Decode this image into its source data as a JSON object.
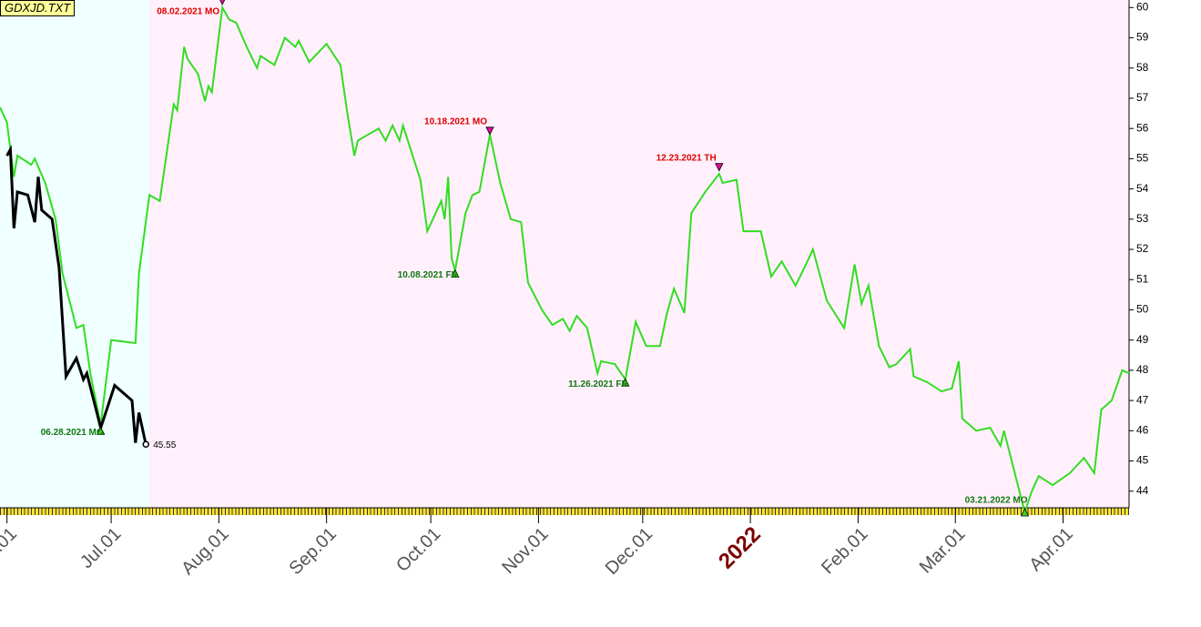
{
  "chart_data": {
    "type": "line",
    "title": "GDXJD.TXT",
    "xlim": [
      "2021-05-30",
      "2022-04-20"
    ],
    "ylim": [
      43.3,
      60.1
    ],
    "yticks": [
      44,
      45,
      46,
      47,
      48,
      49,
      50,
      51,
      52,
      53,
      54,
      55,
      56,
      57,
      58,
      59,
      60
    ],
    "xticks": [
      {
        "value": "2021-06-01",
        "label": "Jun.01"
      },
      {
        "value": "2021-07-01",
        "label": "Jul.01"
      },
      {
        "value": "2021-08-01",
        "label": "Aug.01"
      },
      {
        "value": "2021-09-01",
        "label": "Sep.01"
      },
      {
        "value": "2021-10-01",
        "label": "Oct.01"
      },
      {
        "value": "2021-11-01",
        "label": "Nov.01"
      },
      {
        "value": "2021-12-01",
        "label": "Dec.01"
      },
      {
        "value": "2022-01-01",
        "label": "2022"
      },
      {
        "value": "2022-02-01",
        "label": "Feb.01"
      },
      {
        "value": "2022-03-01",
        "label": "Mar.01"
      },
      {
        "value": "2022-04-01",
        "label": "Apr.01"
      }
    ],
    "shading": [
      {
        "from": "2021-05-30",
        "to": "2021-07-12",
        "color": "#f0ffff"
      },
      {
        "from": "2021-07-12",
        "to": "2022-04-20",
        "color": "#fff0fb"
      }
    ],
    "series": [
      {
        "color": "#33dd22",
        "x": [
          "2021-05-30",
          "2021-06-01",
          "2021-06-03",
          "2021-06-04",
          "2021-06-08",
          "2021-06-09",
          "2021-06-12",
          "2021-06-15",
          "2021-06-17",
          "2021-06-21",
          "2021-06-23",
          "2021-06-25",
          "2021-06-28",
          "2021-07-01",
          "2021-07-08",
          "2021-07-09",
          "2021-07-12",
          "2021-07-15",
          "2021-07-19",
          "2021-07-20",
          "2021-07-22",
          "2021-07-23",
          "2021-07-26",
          "2021-07-28",
          "2021-07-29",
          "2021-07-30",
          "2021-08-02",
          "2021-08-04",
          "2021-08-06",
          "2021-08-09",
          "2021-08-12",
          "2021-08-13",
          "2021-08-17",
          "2021-08-20",
          "2021-08-23",
          "2021-08-24",
          "2021-08-27",
          "2021-09-01",
          "2021-09-05",
          "2021-09-07",
          "2021-09-09",
          "2021-09-10",
          "2021-09-13",
          "2021-09-16",
          "2021-09-18",
          "2021-09-20",
          "2021-09-22",
          "2021-09-23",
          "2021-09-28",
          "2021-09-30",
          "2021-10-04",
          "2021-10-05",
          "2021-10-06",
          "2021-10-07",
          "2021-10-08",
          "2021-10-11",
          "2021-10-13",
          "2021-10-15",
          "2021-10-18",
          "2021-10-21",
          "2021-10-24",
          "2021-10-27",
          "2021-10-29",
          "2021-11-02",
          "2021-11-05",
          "2021-11-08",
          "2021-11-10",
          "2021-11-12",
          "2021-11-15",
          "2021-11-18",
          "2021-11-19",
          "2021-11-23",
          "2021-11-26",
          "2021-11-29",
          "2021-12-02",
          "2021-12-06",
          "2021-12-08",
          "2021-12-10",
          "2021-12-13",
          "2021-12-15",
          "2021-12-19",
          "2021-12-21",
          "2021-12-23",
          "2021-12-24",
          "2021-12-28",
          "2021-12-30",
          "2022-01-04",
          "2022-01-07",
          "2022-01-10",
          "2022-01-14",
          "2022-01-17",
          "2022-01-19",
          "2022-01-23",
          "2022-01-28",
          "2022-01-31",
          "2022-02-02",
          "2022-02-04",
          "2022-02-07",
          "2022-02-10",
          "2022-02-12",
          "2022-02-16",
          "2022-02-17",
          "2022-02-21",
          "2022-02-25",
          "2022-02-28",
          "2022-03-02",
          "2022-03-03",
          "2022-03-07",
          "2022-03-11",
          "2022-03-14",
          "2022-03-15",
          "2022-03-21",
          "2022-03-23",
          "2022-03-25",
          "2022-03-29",
          "2022-04-03",
          "2022-04-07",
          "2022-04-10",
          "2022-04-12",
          "2022-04-15",
          "2022-04-18",
          "2022-04-20"
        ],
        "values": [
          56.7,
          56.2,
          54.4,
          55.1,
          54.8,
          55.0,
          54.2,
          53.0,
          51.2,
          49.4,
          49.5,
          47.9,
          46.2,
          49.0,
          48.9,
          51.2,
          53.8,
          53.6,
          56.8,
          56.6,
          58.7,
          58.3,
          57.8,
          56.9,
          57.4,
          57.2,
          60.0,
          59.6,
          59.5,
          58.7,
          58.0,
          58.4,
          58.1,
          59.0,
          58.7,
          58.9,
          58.2,
          58.8,
          58.1,
          56.5,
          55.1,
          55.6,
          55.8,
          56.0,
          55.6,
          56.1,
          55.6,
          56.1,
          54.3,
          52.6,
          53.6,
          53.0,
          54.4,
          51.7,
          51.3,
          53.2,
          53.8,
          53.9,
          55.8,
          54.2,
          53.0,
          52.9,
          50.9,
          50.0,
          49.5,
          49.7,
          49.3,
          49.8,
          49.4,
          47.9,
          48.3,
          48.2,
          47.7,
          49.6,
          48.8,
          48.8,
          49.9,
          50.7,
          49.9,
          53.2,
          53.9,
          54.2,
          54.5,
          54.2,
          54.3,
          52.6,
          52.6,
          51.1,
          51.6,
          50.8,
          51.5,
          52.0,
          50.3,
          49.4,
          51.5,
          50.2,
          50.8,
          48.8,
          48.1,
          48.2,
          48.7,
          47.8,
          47.6,
          47.3,
          47.4,
          48.3,
          46.4,
          46.0,
          46.1,
          45.5,
          46.0,
          43.3,
          44.0,
          44.5,
          44.2,
          44.6,
          45.1,
          44.6,
          46.7,
          47.0,
          48.0,
          47.9
        ]
      },
      {
        "color": "#000000",
        "x": [
          "2021-06-01",
          "2021-06-02",
          "2021-06-03",
          "2021-06-04",
          "2021-06-07",
          "2021-06-09",
          "2021-06-10",
          "2021-06-11",
          "2021-06-14",
          "2021-06-16",
          "2021-06-18",
          "2021-06-21",
          "2021-06-23",
          "2021-06-24",
          "2021-06-28",
          "2021-06-30",
          "2021-07-02",
          "2021-07-07",
          "2021-07-08",
          "2021-07-09",
          "2021-07-11"
        ],
        "values": [
          55.1,
          55.3,
          52.7,
          53.9,
          53.8,
          52.9,
          54.4,
          53.3,
          53.0,
          51.4,
          47.8,
          48.4,
          47.7,
          47.9,
          46.1,
          46.8,
          47.5,
          47.0,
          45.6,
          46.6,
          45.55
        ]
      }
    ],
    "annotations": [
      {
        "label": "06.28.2021 MO",
        "x": "2021-06-28",
        "value": 46.0,
        "kind": "trough"
      },
      {
        "label": "08.02.2021 MO",
        "x": "2021-08-02",
        "value": 60.1,
        "kind": "peak"
      },
      {
        "label": "10.08.2021 FR",
        "x": "2021-10-08",
        "value": 51.2,
        "kind": "trough"
      },
      {
        "label": "10.18.2021 MO",
        "x": "2021-10-18",
        "value": 55.8,
        "kind": "peak"
      },
      {
        "label": "11.26.2021 FR",
        "x": "2021-11-26",
        "value": 47.6,
        "kind": "trough"
      },
      {
        "label": "12.23.2021 TH",
        "x": "2021-12-23",
        "value": 54.6,
        "kind": "peak"
      },
      {
        "label": "03.21.2022 MO",
        "x": "2022-03-21",
        "value": 43.3,
        "kind": "trough"
      }
    ]
  }
}
